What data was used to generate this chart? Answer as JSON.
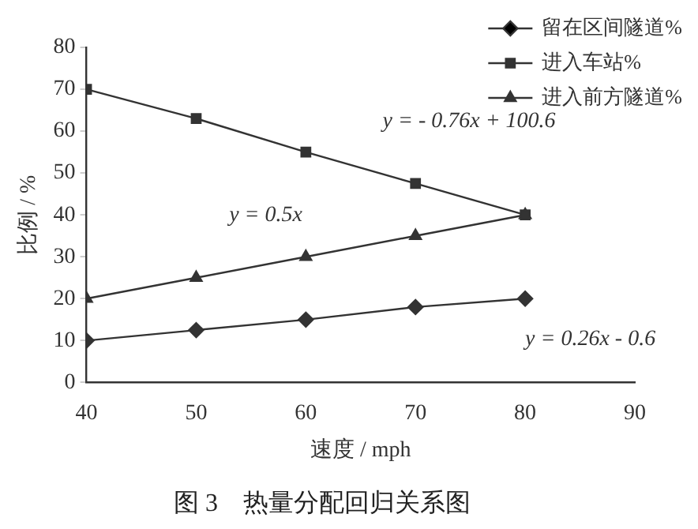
{
  "chart_data": {
    "type": "line",
    "title": "图 3　热量分配回归关系图",
    "xlabel": "速度 / mph",
    "ylabel": "比例 / %",
    "x": [
      40,
      50,
      60,
      70,
      80
    ],
    "xlim": [
      40,
      90
    ],
    "xticks": [
      40,
      50,
      60,
      70,
      80,
      90
    ],
    "ylim": [
      0,
      80
    ],
    "yticks": [
      0,
      10,
      20,
      30,
      40,
      50,
      60,
      70,
      80
    ],
    "grid": false,
    "legend": "top right",
    "line_style": "solid",
    "series": [
      {
        "name": "留在区间隧道%",
        "color": "#333333",
        "marker": "diamond",
        "values": [
          10,
          12.5,
          15,
          18,
          20
        ]
      },
      {
        "name": "进入车站%",
        "color": "#333333",
        "marker": "square",
        "values": [
          70,
          63,
          55,
          47.5,
          40
        ]
      },
      {
        "name": "进入前方隧道%",
        "color": "#333333",
        "marker": "triangle",
        "values": [
          20,
          25,
          30,
          35,
          40
        ]
      }
    ],
    "annotations": [
      "y = - 0.76x + 100.6",
      "y = 0.5x",
      "y = 0.26x - 0.6"
    ]
  }
}
